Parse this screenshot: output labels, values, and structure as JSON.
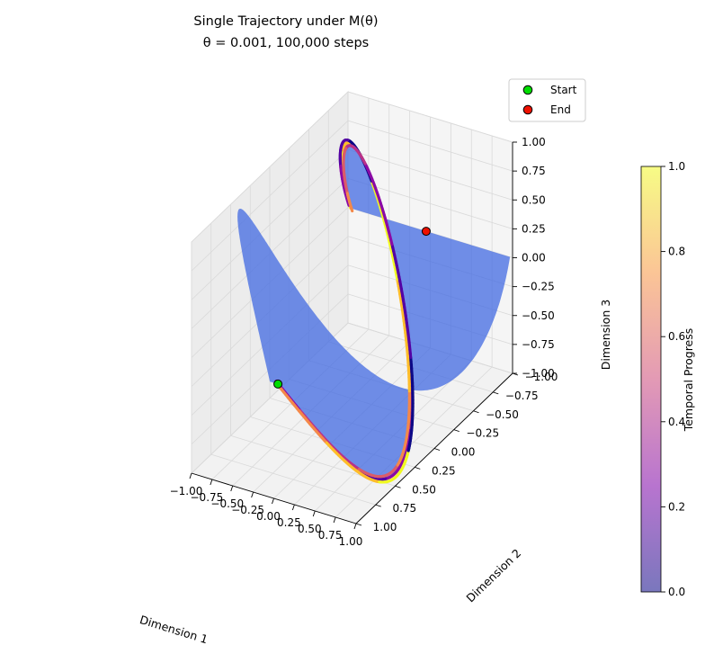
{
  "chart_data": {
    "type": "scatter",
    "projection": "3d",
    "title_line1": "Single Trajectory under M(θ)",
    "title_line2": "θ = 0.001, 100,000 steps",
    "xlabel": "Dimension 1",
    "ylabel": "Dimension 2",
    "zlabel": "Dimension 3",
    "xlim": [
      -1.0,
      1.0
    ],
    "ylim": [
      -1.0,
      1.0
    ],
    "zlim": [
      -1.0,
      1.0
    ],
    "x_ticks": [
      "−1.00",
      "−0.75",
      "−0.50",
      "−0.25",
      "0.00",
      "0.25",
      "0.50",
      "0.75",
      "1.00"
    ],
    "y_ticks": [
      "−1.00",
      "−0.75",
      "−0.50",
      "−0.25",
      "0.00",
      "0.25",
      "0.50",
      "0.75",
      "1.00"
    ],
    "z_ticks": [
      "−1.00",
      "−0.75",
      "−0.50",
      "−0.25",
      "0.00",
      "0.25",
      "0.50",
      "0.75",
      "1.00"
    ],
    "grid": true,
    "legend": {
      "placement": "upper-right",
      "entries": [
        {
          "label": "Start",
          "color": "#00dd00"
        },
        {
          "label": "End",
          "color": "#ee1100"
        }
      ]
    },
    "colorbar": {
      "label": "Temporal Progress",
      "range": [
        0.0,
        1.0
      ],
      "ticks": [
        "0.0",
        "0.2",
        "0.4",
        "0.6",
        "0.8",
        "1.0"
      ],
      "colormap": "plasma"
    },
    "surface_color": "#4169e1",
    "trajectory_points": [
      {
        "x": -0.05,
        "y": -1.0,
        "z": 0.0
      },
      {
        "x": -0.47,
        "y": -0.8,
        "z": 0.59
      },
      {
        "x": -0.84,
        "y": -0.6,
        "z": 0.95
      },
      {
        "x": -0.96,
        "y": -0.4,
        "z": 0.95
      },
      {
        "x": -0.68,
        "y": -0.2,
        "z": 0.59
      },
      {
        "x": -0.02,
        "y": 0.0,
        "z": 0.0
      },
      {
        "x": 0.66,
        "y": 0.2,
        "z": -0.59
      },
      {
        "x": 0.95,
        "y": 0.4,
        "z": -0.95
      },
      {
        "x": 0.85,
        "y": 0.6,
        "z": -0.95
      },
      {
        "x": 0.48,
        "y": 0.8,
        "z": -0.59
      },
      {
        "x": 0.05,
        "y": 1.0,
        "z": 0.0
      }
    ]
  }
}
